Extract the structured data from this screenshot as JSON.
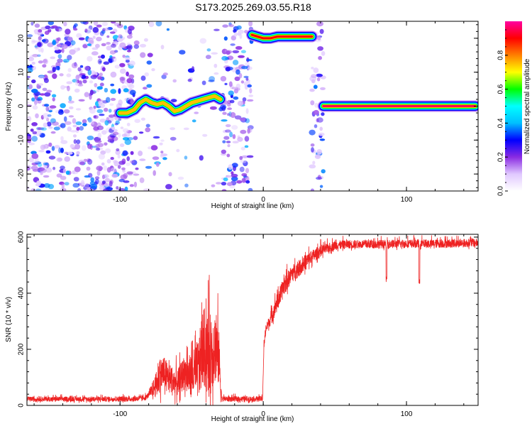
{
  "title": "S173.2025.269.03.55.R18",
  "chart_data": [
    {
      "type": "heatmap",
      "name": "spectrogram",
      "xlabel": "Height of straight line (km)",
      "ylabel": "Frequency (Hz)",
      "xlim": [
        -165,
        150
      ],
      "ylim": [
        -25,
        25
      ],
      "xticks": [
        -100,
        0,
        100
      ],
      "yticks": [
        -20,
        -10,
        0,
        10,
        20
      ],
      "colorbar": {
        "label": "Normalized spectral amplitude",
        "range": [
          0,
          1
        ],
        "ticks": [
          "0.0",
          "0.2",
          "0.4",
          "0.6",
          "0.8"
        ],
        "tick_values": [
          0,
          0.2,
          0.4,
          0.6,
          0.8
        ],
        "colors": [
          "#ffffff",
          "#e0c8ff",
          "#8a2be2",
          "#0000ff",
          "#00bfff",
          "#00ffff",
          "#00ff00",
          "#ffff00",
          "#ff8000",
          "#ff0000",
          "#ff00a0"
        ]
      },
      "noise_bands": [
        {
          "x": [
            -165,
            -90
          ],
          "density": 1.0
        },
        {
          "x": [
            -90,
            -62
          ],
          "density": 0.25
        },
        {
          "x": [
            -62,
            -28
          ],
          "density": 0.12
        },
        {
          "x": [
            -28,
            -8
          ],
          "density": 0.9
        },
        {
          "x": [
            34,
            42
          ],
          "density": 0.85
        }
      ],
      "tracks": [
        {
          "name": "track-left",
          "points": [
            [
              -100,
              -2
            ],
            [
              -95,
              -2
            ],
            [
              -90,
              -1
            ],
            [
              -86,
              1
            ],
            [
              -82,
              2
            ],
            [
              -78,
              1
            ],
            [
              -74,
              0.5
            ],
            [
              -70,
              1
            ],
            [
              -66,
              0
            ],
            [
              -62,
              -1.5
            ],
            [
              -58,
              -1
            ],
            [
              -54,
              0
            ],
            [
              -50,
              1
            ],
            [
              -46,
              1.5
            ],
            [
              -42,
              2
            ],
            [
              -38,
              2.5
            ],
            [
              -34,
              3
            ],
            [
              -30,
              2
            ]
          ],
          "peak_amplitude": 0.75
        },
        {
          "name": "track-mid",
          "points": [
            [
              -8,
              21
            ],
            [
              -4,
              20.5
            ],
            [
              0,
              20
            ],
            [
              5,
              20
            ],
            [
              10,
              20.5
            ],
            [
              15,
              20.5
            ],
            [
              20,
              20.5
            ],
            [
              25,
              20.5
            ],
            [
              30,
              20.5
            ],
            [
              34,
              20.5
            ]
          ],
          "peak_amplitude": 0.9
        },
        {
          "name": "track-right",
          "points": [
            [
              42,
              0
            ],
            [
              60,
              0
            ],
            [
              80,
              0
            ],
            [
              100,
              0
            ],
            [
              120,
              0
            ],
            [
              148,
              0
            ]
          ],
          "peak_amplitude": 0.95
        }
      ]
    },
    {
      "type": "line",
      "name": "snr",
      "xlabel": "Height of straight line (km)",
      "ylabel": "SNR (10 * v/v)",
      "xlim": [
        -165,
        150
      ],
      "ylim": [
        0,
        610
      ],
      "xticks": [
        -100,
        0,
        100
      ],
      "yticks": [
        0,
        200,
        400,
        600
      ],
      "color": "#ee2222",
      "series": [
        {
          "name": "SNR",
          "envelope": {
            "x": [
              -165,
              -90,
              -82,
              -75,
              -70,
              -66,
              -60,
              -55,
              -50,
              -45,
              -42,
              -38,
              -34,
              -31,
              -29,
              -20,
              -10,
              -0.5,
              0.5,
              2,
              5,
              10,
              15,
              20,
              25,
              30,
              35,
              40,
              45,
              50,
              60,
              80,
              100,
              120,
              150
            ],
            "y": [
              20,
              20,
              25,
              60,
              100,
              80,
              60,
              100,
              80,
              100,
              170,
              130,
              170,
              140,
              20,
              20,
              20,
              20,
              210,
              270,
              300,
              360,
              420,
              460,
              480,
              505,
              525,
              545,
              555,
              565,
              570,
              570,
              572,
              572,
              575
            ]
          },
          "noise_amplitude": {
            "x": [
              -165,
              -80,
              -72,
              -60,
              -50,
              -45,
              -40,
              -35,
              -31,
              -29,
              0,
              10,
              30,
              45,
              60,
              150
            ],
            "y": [
              12,
              14,
              90,
              70,
              110,
              160,
              220,
              200,
              150,
              14,
              14,
              50,
              40,
              25,
              22,
              22
            ]
          },
          "dips": [
            {
              "x": 86,
              "y": 440
            },
            {
              "x": 109,
              "y": 430
            }
          ]
        }
      ]
    }
  ]
}
